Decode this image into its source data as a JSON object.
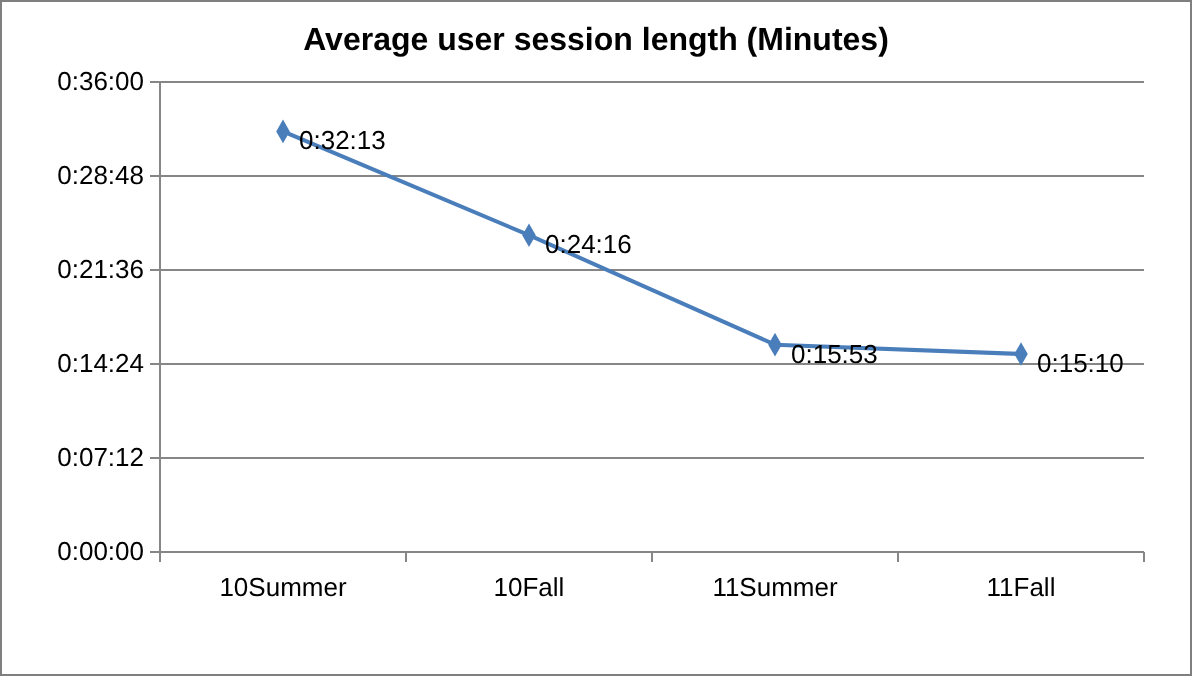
{
  "chart_data": {
    "type": "line",
    "title": "Average user session length (Minutes)",
    "categories": [
      "10Summer",
      "10Fall",
      "11Summer",
      "11Fall"
    ],
    "series": [
      {
        "color": "#4a7ebb",
        "values": [
          32.2167,
          24.2667,
          15.8833,
          15.1667
        ],
        "value_labels": [
          "0:32:13",
          "0:24:16",
          "0:15:53",
          "0:15:10"
        ]
      }
    ],
    "ylim": [
      0,
      36
    ],
    "yticks": [
      {
        "value": 0,
        "label": "0:00:00"
      },
      {
        "value": 7.2,
        "label": "0:07:12"
      },
      {
        "value": 14.4,
        "label": "0:14:24"
      },
      {
        "value": 21.6,
        "label": "0:21:36"
      },
      {
        "value": 28.8,
        "label": "0:28:48"
      },
      {
        "value": 36,
        "label": "0:36:00"
      }
    ],
    "grid": "y",
    "marker": "diamond",
    "line_style": "solid"
  }
}
